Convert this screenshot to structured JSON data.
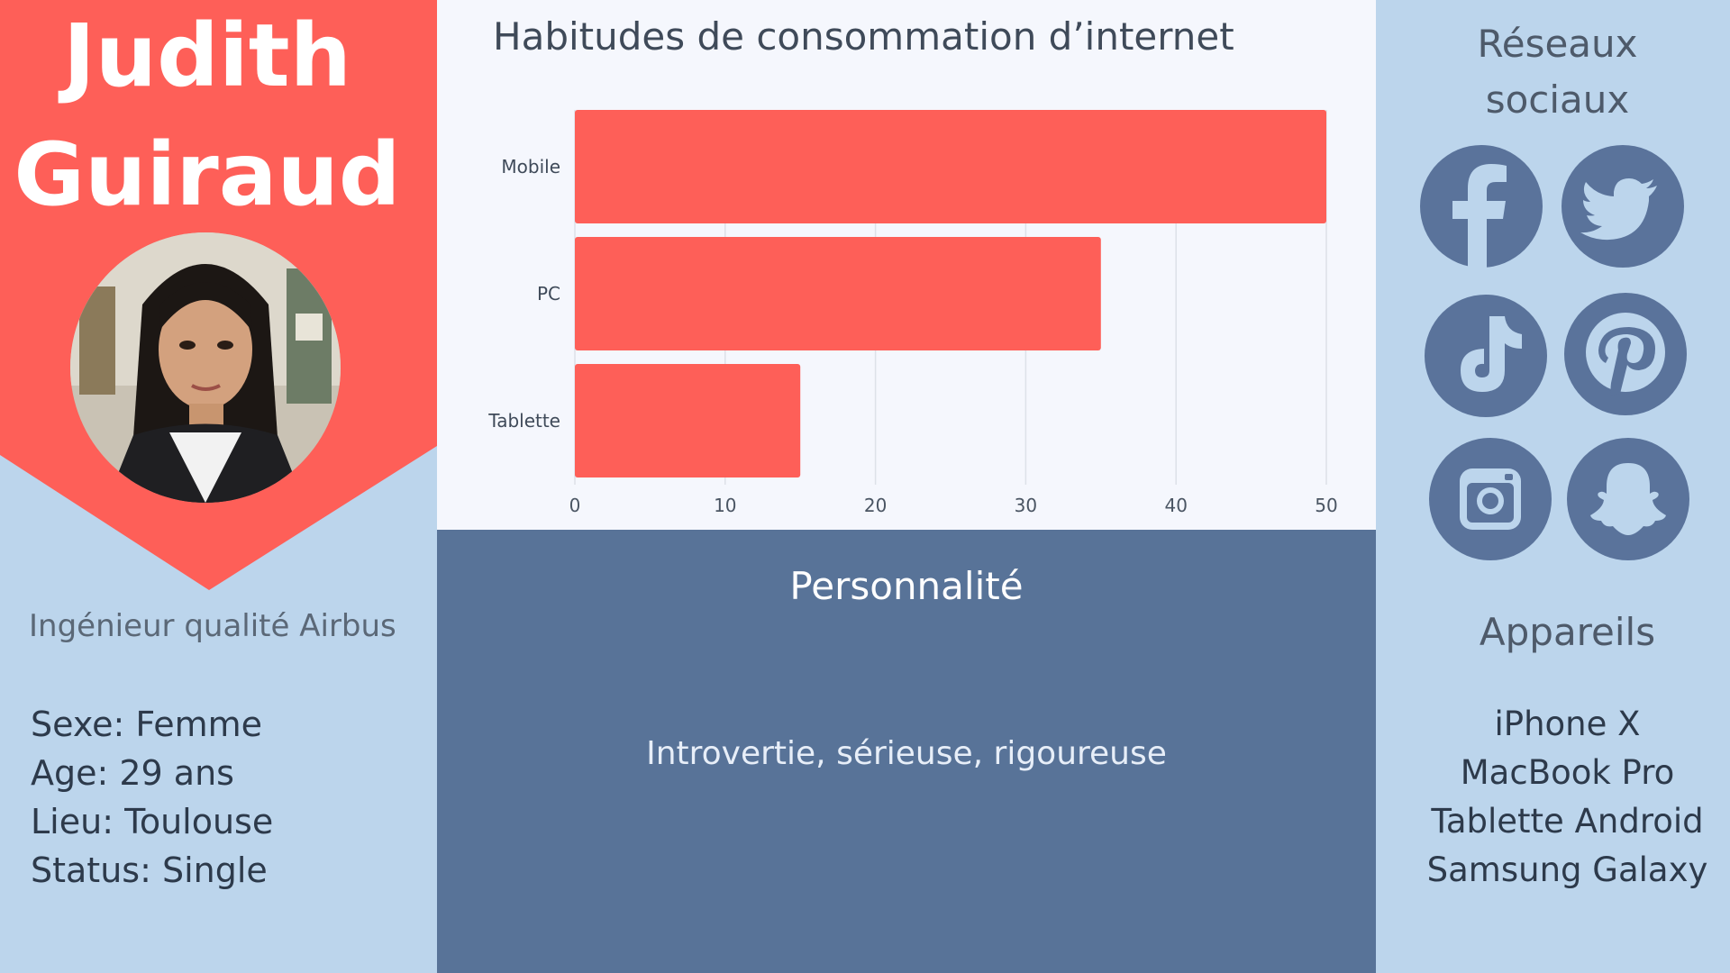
{
  "persona": {
    "first_name": "Judith",
    "last_name": "Guiraud",
    "role": "Ingénieur qualité Airbus",
    "facts": [
      "Sexe: Femme",
      "Age: 29 ans",
      "Lieu: Toulouse",
      "Status: Single"
    ]
  },
  "chart": {
    "title": "Habitudes de consommation d’internet"
  },
  "chart_data": {
    "type": "bar",
    "orientation": "horizontal",
    "categories": [
      "Mobile",
      "PC",
      "Tablette"
    ],
    "values": [
      50,
      35,
      15
    ],
    "xlim": [
      0,
      50
    ],
    "xticks": [
      0,
      10,
      20,
      30,
      40,
      50
    ],
    "grid": true,
    "bar_color": "#fe5f58"
  },
  "personality": {
    "heading": "Personnalité",
    "text": "Introvertie, sérieuse, rigoureuse"
  },
  "social": {
    "title": "Réseaux sociaux",
    "icons": [
      "facebook-icon",
      "twitter-icon",
      "tiktok-icon",
      "pinterest-icon",
      "instagram-icon",
      "snapchat-icon"
    ]
  },
  "devices": {
    "title": "Appareils",
    "items": [
      "iPhone X",
      "MacBook Pro",
      "Tablette Android",
      "Samsung Galaxy"
    ]
  },
  "colors": {
    "accent_red": "#fe5f58",
    "light_blue": "#bcd5ec",
    "slate_blue": "#587398",
    "chart_bg": "#f5f7fd"
  }
}
